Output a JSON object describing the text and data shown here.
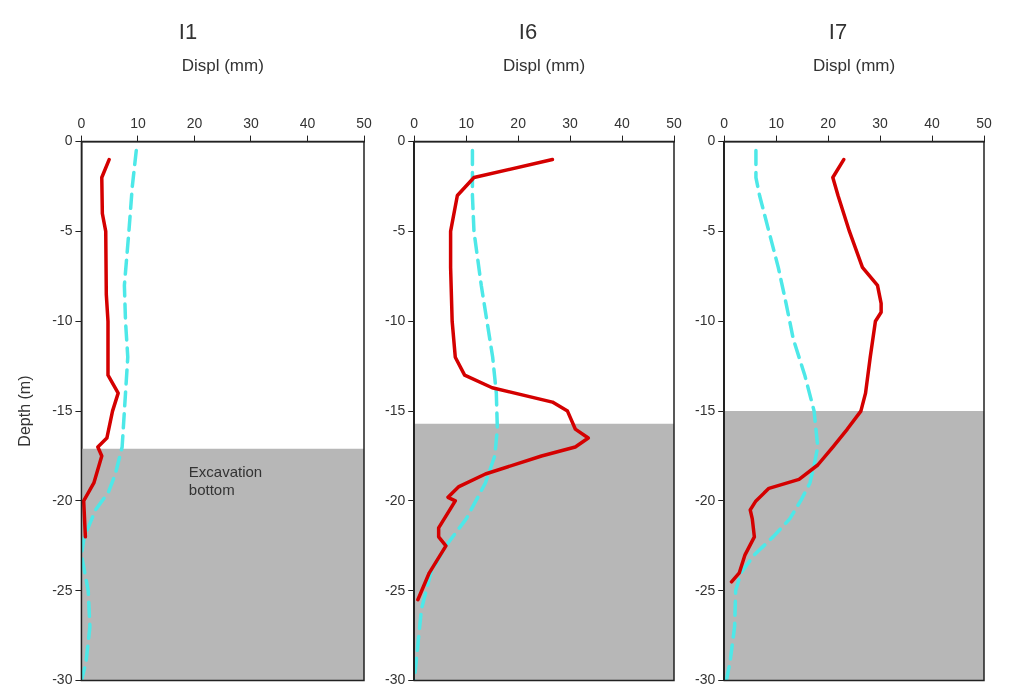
{
  "chart_data": [
    {
      "type": "line",
      "title": "I1",
      "xlabel": "Displ (mm)",
      "ylabel": "Depth (m)",
      "xlim": [
        0,
        50
      ],
      "xticks": [
        0,
        10,
        20,
        30,
        40,
        50
      ],
      "ylim": [
        -30,
        0
      ],
      "yticks": [
        0,
        -5,
        -10,
        -15,
        -20,
        -25,
        -30
      ],
      "bands": [
        {
          "axis": "y",
          "from": -30,
          "to": -17.1,
          "color": "#b7b7b7"
        }
      ],
      "annotations": [
        "Excavation bottom"
      ],
      "series": [
        {
          "color": "#d40000",
          "line_style": "solid",
          "x": [
            4.9,
            3.6,
            3.7,
            4.3,
            4.4,
            4.7,
            4.7,
            6.5,
            5.5,
            4.5,
            2.9,
            3.6,
            2.2,
            0.4,
            0.7
          ],
          "values": [
            -1,
            -2,
            -4,
            -5,
            -8.5,
            -10,
            -13,
            -14,
            -15,
            -16.5,
            -17,
            -17.5,
            -19,
            -20,
            -22
          ]
        },
        {
          "color": "#4de8e8",
          "line_style": "dashed",
          "x": [
            9.7,
            9,
            8.4,
            7.6,
            7.8,
            8.2,
            7.8,
            7.2,
            6,
            4.8,
            2.5,
            0.5,
            0,
            1.2,
            1.5,
            0.8,
            0
          ],
          "values": [
            -0.5,
            -2.5,
            -5,
            -8,
            -10,
            -12,
            -14,
            -17,
            -18.5,
            -19.5,
            -20.5,
            -22,
            -23,
            -25,
            -27,
            -29,
            -30
          ]
        }
      ]
    },
    {
      "type": "line",
      "title": "I6",
      "xlabel": "Displ (mm)",
      "xlim": [
        0,
        50
      ],
      "xticks": [
        0,
        10,
        20,
        30,
        40,
        50
      ],
      "ylim": [
        -30,
        0
      ],
      "yticks": [
        0,
        -5,
        -10,
        -15,
        -20,
        -25,
        -30
      ],
      "bands": [
        {
          "axis": "y",
          "from": -30,
          "to": -15.7,
          "color": "#b7b7b7"
        }
      ],
      "series": [
        {
          "color": "#d40000",
          "line_style": "solid",
          "x": [
            26.6,
            11.5,
            8.3,
            7,
            7,
            7.3,
            7.9,
            9.7,
            15,
            26.6,
            29.5,
            31,
            33.5,
            31,
            24.5,
            13.7,
            8.6,
            6.5,
            7.9,
            4.7,
            4.7,
            6.1,
            2.9,
            0.7
          ],
          "values": [
            -1,
            -2,
            -3,
            -5,
            -7,
            -10,
            -12,
            -13,
            -13.7,
            -14.5,
            -15,
            -16,
            -16.5,
            -17,
            -17.5,
            -18.5,
            -19.2,
            -19.8,
            -20,
            -21.5,
            -22,
            -22.5,
            -24,
            -25.5
          ]
        },
        {
          "color": "#4de8e8",
          "line_style": "dashed",
          "x": [
            11.2,
            11.2,
            11.5,
            12.9,
            14,
            15.1,
            15.8,
            16,
            15.5,
            13.7,
            10,
            6.1,
            3.2,
            1.4,
            0.7,
            0
          ],
          "values": [
            -0.5,
            -3,
            -5,
            -8,
            -10,
            -12,
            -14,
            -16,
            -17.5,
            -19,
            -21,
            -22.5,
            -24,
            -26,
            -28,
            -30
          ]
        }
      ]
    },
    {
      "type": "line",
      "title": "I7",
      "xlabel": "Displ (mm)",
      "xlim": [
        0,
        50
      ],
      "xticks": [
        0,
        10,
        20,
        30,
        40,
        50
      ],
      "ylim": [
        -30,
        0
      ],
      "yticks": [
        0,
        -5,
        -10,
        -15,
        -20,
        -25,
        -30
      ],
      "bands": [
        {
          "axis": "y",
          "from": -30,
          "to": -15,
          "color": "#b7b7b7"
        }
      ],
      "series": [
        {
          "color": "#d40000",
          "line_style": "solid",
          "x": [
            23,
            20.9,
            21.9,
            24.1,
            26.6,
            29.5,
            30.2,
            30.2,
            29.1,
            28.1,
            27.2,
            26.3,
            23.7,
            20.9,
            18,
            14.4,
            8.6,
            6.1,
            5,
            5.4,
            5.8,
            4,
            2.9,
            1.4
          ],
          "values": [
            -1,
            -2,
            -3,
            -5,
            -7,
            -8,
            -9,
            -9.5,
            -10,
            -12,
            -14,
            -15,
            -16,
            -17,
            -18,
            -18.8,
            -19.3,
            -20,
            -20.5,
            -21,
            -22,
            -23,
            -24,
            -24.5
          ]
        },
        {
          "color": "#4de8e8",
          "line_style": "dashed",
          "x": [
            6.1,
            6.1,
            6.8,
            8.6,
            10.4,
            11.9,
            13.3,
            15.5,
            17.3,
            18,
            17.3,
            16.5,
            14.7,
            12.6,
            9.4,
            5.8,
            3.2,
            2.2,
            2,
            1.1,
            0.4
          ],
          "values": [
            -0.5,
            -2,
            -3,
            -5,
            -7,
            -9,
            -11,
            -13,
            -15,
            -17,
            -18,
            -19,
            -20,
            -21,
            -22,
            -23,
            -24,
            -25,
            -27,
            -29,
            -30
          ]
        }
      ]
    }
  ]
}
